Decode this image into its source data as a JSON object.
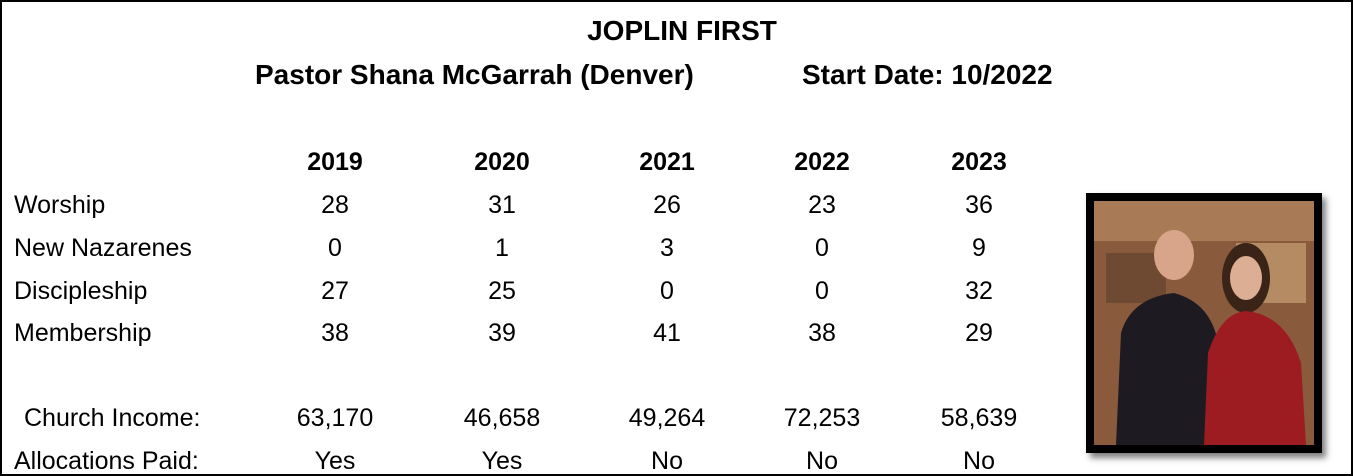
{
  "header": {
    "title": "JOPLIN FIRST",
    "pastor": "Pastor Shana McGarrah (Denver)",
    "start_date": "Start Date: 10/2022"
  },
  "table": {
    "columns": [
      "2019",
      "2020",
      "2021",
      "2022",
      "2023"
    ],
    "rows": [
      {
        "label": "Worship",
        "values": [
          "28",
          "31",
          "26",
          "23",
          "36"
        ]
      },
      {
        "label": "New Nazarenes",
        "values": [
          "0",
          "1",
          "3",
          "0",
          "9"
        ]
      },
      {
        "label": "Discipleship",
        "values": [
          "27",
          "25",
          "0",
          "0",
          "32"
        ]
      },
      {
        "label": "Membership",
        "values": [
          "38",
          "39",
          "41",
          "38",
          "29"
        ]
      }
    ],
    "footer_rows": [
      {
        "label": "Church Income:",
        "values": [
          "63,170",
          "46,658",
          "49,264",
          "72,253",
          "58,639"
        ]
      },
      {
        "label": "Allocations Paid:",
        "values": [
          "Yes",
          "Yes",
          "No",
          "No",
          "No"
        ]
      }
    ]
  }
}
